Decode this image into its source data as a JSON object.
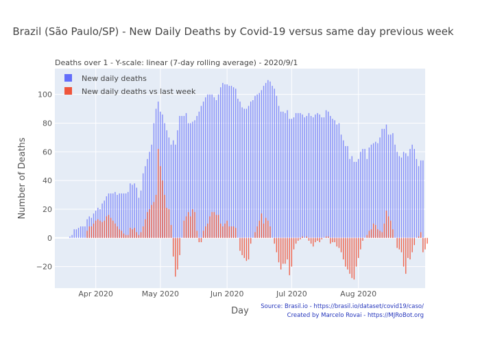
{
  "chart_data": {
    "type": "bar",
    "title": "Brazil (São Paulo/SP) - New Daily Deaths by Covid-19 versus same day previous week",
    "subtitle": "Deaths over 1 - Y-scale: linear (7-day rolling average) - 2020/9/1",
    "xlabel": "Day",
    "ylabel": "Number of Deaths",
    "ylim": [
      -35,
      118
    ],
    "yticks": [
      -20,
      0,
      20,
      40,
      60,
      80,
      100
    ],
    "xlim": [
      "2020-03-13",
      "2020-09-01"
    ],
    "xticks": [
      {
        "label": "Apr 2020",
        "date": "2020-04-01"
      },
      {
        "label": "May 2020",
        "date": "2020-05-01"
      },
      {
        "label": "Jun 2020",
        "date": "2020-06-01"
      },
      {
        "label": "Jul 2020",
        "date": "2020-07-01"
      },
      {
        "label": "Aug 2020",
        "date": "2020-08-01"
      }
    ],
    "grid": true,
    "legend_position": "top-left",
    "start_date": "2020-03-20",
    "series": [
      {
        "name": "New daily deaths",
        "color": "#636efa",
        "values": [
          1,
          2,
          6,
          6,
          7,
          8,
          8,
          8,
          13,
          15,
          14,
          17,
          19,
          21,
          20,
          24,
          26,
          29,
          31,
          31,
          31,
          32,
          30,
          31,
          31,
          31,
          31,
          32,
          38,
          37,
          38,
          35,
          28,
          33,
          45,
          50,
          55,
          60,
          65,
          80,
          90,
          95,
          88,
          86,
          80,
          75,
          70,
          65,
          68,
          65,
          75,
          85,
          85,
          85,
          87,
          80,
          80,
          81,
          82,
          85,
          88,
          92,
          95,
          98,
          100,
          100,
          100,
          98,
          96,
          100,
          105,
          108,
          107,
          107,
          106,
          106,
          105,
          104,
          97,
          95,
          91,
          90,
          90,
          92,
          95,
          96,
          99,
          100,
          101,
          103,
          106,
          108,
          110,
          109,
          106,
          104,
          99,
          92,
          88,
          88,
          87,
          89,
          83,
          83,
          84,
          87,
          87,
          87,
          86,
          84,
          85,
          87,
          85,
          84,
          86,
          87,
          86,
          84,
          84,
          89,
          88,
          85,
          83,
          82,
          79,
          80,
          72,
          68,
          64,
          64,
          55,
          57,
          53,
          53,
          55,
          60,
          62,
          62,
          55,
          63,
          65,
          66,
          67,
          66,
          70,
          76,
          76,
          79,
          72,
          72,
          73,
          65,
          60,
          57,
          56,
          60,
          59,
          57,
          62,
          65,
          62,
          55,
          50,
          54,
          54
        ]
      },
      {
        "name": "New daily deaths vs last week",
        "color": "#ef553b",
        "values": [
          0,
          0,
          0,
          0,
          0,
          0,
          0,
          0,
          5,
          8,
          8,
          10,
          12,
          13,
          12,
          11,
          12,
          15,
          16,
          14,
          12,
          10,
          8,
          6,
          5,
          3,
          2,
          2,
          7,
          6,
          7,
          4,
          2,
          4,
          8,
          13,
          18,
          20,
          23,
          25,
          30,
          62,
          50,
          40,
          30,
          21,
          20,
          9,
          -13,
          -27,
          -22,
          -12,
          0,
          12,
          15,
          18,
          15,
          20,
          18,
          5,
          -3,
          -3,
          5,
          8,
          10,
          15,
          18,
          18,
          16,
          16,
          10,
          8,
          10,
          12,
          8,
          8,
          8,
          7,
          0,
          -9,
          -12,
          -14,
          -16,
          -15,
          -4,
          0,
          4,
          8,
          12,
          17,
          10,
          14,
          12,
          8,
          0,
          -4,
          -10,
          -17,
          -22,
          -18,
          -18,
          -15,
          -26,
          -20,
          -8,
          -4,
          -2,
          -1,
          1,
          0,
          1,
          -2,
          -4,
          -6,
          -3,
          -2,
          -3,
          -1,
          0,
          1,
          1,
          -4,
          -3,
          -3,
          -6,
          -7,
          -10,
          -15,
          -20,
          -22,
          -25,
          -28,
          -29,
          -20,
          -14,
          -8,
          -2,
          0,
          2,
          5,
          6,
          10,
          9,
          6,
          5,
          4,
          10,
          19,
          15,
          12,
          6,
          0,
          -7,
          -8,
          -10,
          -20,
          -25,
          -14,
          -15,
          -10,
          -5,
          0,
          1,
          4,
          -10,
          -8,
          -4
        ]
      }
    ]
  },
  "source_lines": [
    "Source: Brasil.io - https://brasil.io/dataset/covid19/caso/",
    "Created by Marcelo Rovai - https://MJRoBot.org"
  ]
}
